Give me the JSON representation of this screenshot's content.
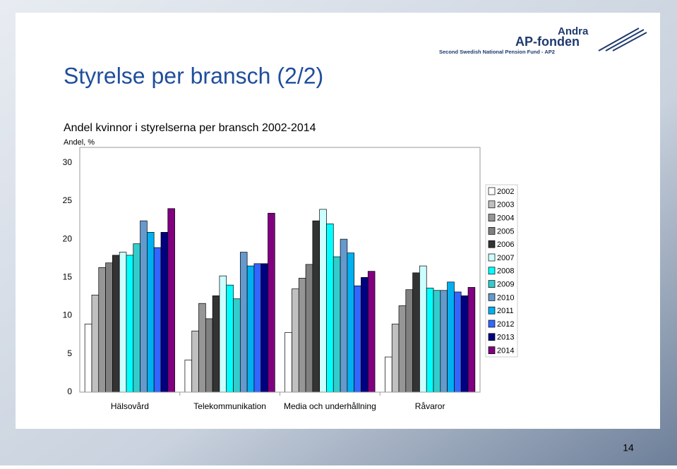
{
  "slide_title": "Styrelse per bransch (2/2)",
  "logo": {
    "name_line1": "Andra",
    "name_line2": "AP-fonden",
    "tagline": "Second Swedish National Pension Fund - AP2"
  },
  "page_number": "14",
  "chart_data": {
    "type": "bar",
    "title": "Andel kvinnor i styrelserna per bransch 2002-2014",
    "y_label": "Andel, %",
    "categories": [
      "Hälsovård",
      "Telekommunikation",
      "Media och underhållning",
      "Råvaror"
    ],
    "ylim": [
      0,
      32
    ],
    "yticks": [
      0,
      5,
      10,
      15,
      20,
      25,
      30
    ],
    "grid": false,
    "legend": "right",
    "series": [
      {
        "name": "2002",
        "color": "#ffffff",
        "values": [
          8.9,
          4.2,
          7.8,
          4.6
        ]
      },
      {
        "name": "2003",
        "color": "#c0c0c0",
        "values": [
          12.7,
          8.0,
          13.5,
          8.9
        ]
      },
      {
        "name": "2004",
        "color": "#969696",
        "values": [
          16.3,
          11.6,
          14.9,
          11.3
        ]
      },
      {
        "name": "2005",
        "color": "#808080",
        "values": [
          16.9,
          9.6,
          16.7,
          13.4
        ]
      },
      {
        "name": "2006",
        "color": "#333333",
        "values": [
          17.9,
          12.6,
          22.4,
          15.6
        ]
      },
      {
        "name": "2007",
        "color": "#ccffff",
        "values": [
          18.3,
          15.2,
          23.9,
          16.5
        ]
      },
      {
        "name": "2008",
        "color": "#00ffff",
        "values": [
          17.9,
          14.0,
          22.0,
          13.6
        ]
      },
      {
        "name": "2009",
        "color": "#33cccc",
        "values": [
          19.4,
          12.2,
          17.7,
          13.3
        ]
      },
      {
        "name": "2010",
        "color": "#6699cc",
        "values": [
          22.4,
          18.3,
          20.0,
          13.3
        ]
      },
      {
        "name": "2011",
        "color": "#00b0f0",
        "values": [
          20.9,
          16.5,
          18.2,
          14.4
        ]
      },
      {
        "name": "2012",
        "color": "#3366ff",
        "values": [
          18.9,
          16.8,
          13.9,
          13.1
        ]
      },
      {
        "name": "2013",
        "color": "#000080",
        "values": [
          20.9,
          16.8,
          15.0,
          12.6
        ]
      },
      {
        "name": "2014",
        "color": "#800080",
        "values": [
          24.0,
          23.4,
          15.8,
          13.7
        ]
      }
    ]
  }
}
